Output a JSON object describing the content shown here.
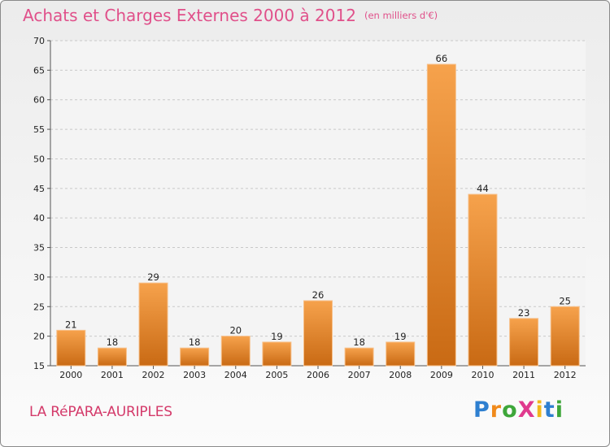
{
  "title": {
    "main": "Achats et Charges Externes 2000 à 2012",
    "unit": "(en milliers d'€)"
  },
  "commune": "LA RéPARA-AURIPLES",
  "logo": {
    "text": "ProXiti",
    "letters": [
      {
        "ch": "P",
        "color": "#2e7fd0"
      },
      {
        "ch": "r",
        "color": "#f08a1c"
      },
      {
        "ch": "o",
        "color": "#3ea63a"
      },
      {
        "ch": "X",
        "color": "#e03a8e"
      },
      {
        "ch": "i",
        "color": "#f2b81b"
      },
      {
        "ch": "t",
        "color": "#2e7fd0"
      },
      {
        "ch": "i",
        "color": "#3ea63a"
      }
    ]
  },
  "colors": {
    "title": "#e0508a",
    "commune": "#d43a6a",
    "bar_light": "#f6a24c",
    "bar_dark": "#c96a14",
    "grid": "#c8c8c8"
  },
  "chart_data": {
    "type": "bar",
    "categories": [
      "2000",
      "2001",
      "2002",
      "2003",
      "2004",
      "2005",
      "2006",
      "2007",
      "2008",
      "2009",
      "2010",
      "2011",
      "2012"
    ],
    "values": [
      21,
      18,
      29,
      18,
      20,
      19,
      26,
      18,
      19,
      66,
      44,
      23,
      25
    ],
    "ylim": [
      15,
      70
    ],
    "yticks": [
      15,
      20,
      25,
      30,
      35,
      40,
      45,
      50,
      55,
      60,
      65,
      70
    ],
    "grid": "horizontal dashed",
    "legend": "none",
    "data_labels": true
  }
}
